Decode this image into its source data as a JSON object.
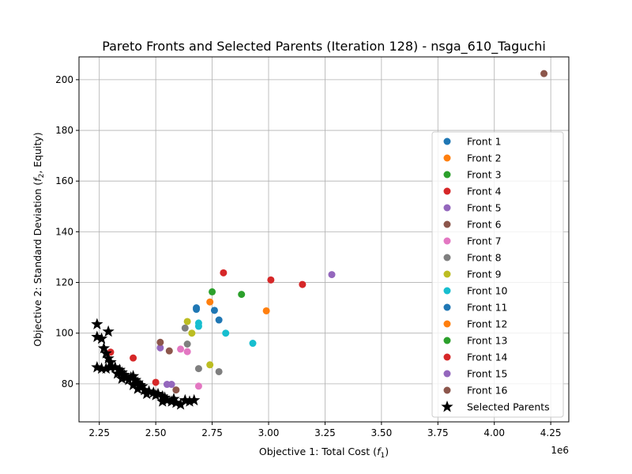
{
  "chart_data": {
    "type": "scatter",
    "title": "Pareto Fronts and Selected Parents (Iteration 128) - nsga_610_Taguchi",
    "xlabel": "Objective 1: Total Cost (f1)",
    "ylabel": "Objective 2: Standard Deviation (f2, Equity)",
    "x_multiplier": "1e6",
    "xlim": [
      2.16,
      4.33
    ],
    "ylim": [
      65,
      209
    ],
    "x_ticks": [
      2.25,
      2.5,
      2.75,
      3.0,
      3.25,
      3.5,
      3.75,
      4.0,
      4.25
    ],
    "x_tick_labels": [
      "2.25",
      "2.50",
      "2.75",
      "3.00",
      "3.25",
      "3.50",
      "3.75",
      "4.00",
      "4.25"
    ],
    "y_ticks": [
      80,
      100,
      120,
      140,
      160,
      180,
      200
    ],
    "y_tick_labels": [
      "80",
      "100",
      "120",
      "140",
      "160",
      "180",
      "200"
    ],
    "grid": true,
    "legend_position": "center-right",
    "series": [
      {
        "name": "Front 1",
        "color": "#1f77b4",
        "points": [
          [
            2.68,
            110.0
          ],
          [
            2.76,
            109.0
          ],
          [
            2.78,
            105.2
          ]
        ]
      },
      {
        "name": "Front 2",
        "color": "#ff7f0e",
        "points": [
          [
            2.74,
            112.3
          ],
          [
            2.99,
            108.8
          ]
        ]
      },
      {
        "name": "Front 3",
        "color": "#2ca02c",
        "points": [
          [
            2.75,
            116.3
          ],
          [
            2.88,
            115.3
          ]
        ]
      },
      {
        "name": "Front 4",
        "color": "#d62728",
        "points": [
          [
            2.8,
            123.8
          ],
          [
            3.01,
            121.0
          ],
          [
            3.15,
            119.2
          ]
        ]
      },
      {
        "name": "Front 5",
        "color": "#9467bd",
        "points": [
          [
            3.28,
            123.1
          ]
        ]
      },
      {
        "name": "Front 6",
        "color": "#8c564b",
        "points": [
          [
            4.22,
            202.4
          ]
        ]
      },
      {
        "name": "Front 7",
        "color": "#e377c2",
        "points": [
          [
            2.61,
            93.7
          ],
          [
            2.64,
            92.7
          ],
          [
            2.69,
            79.1
          ]
        ]
      },
      {
        "name": "Front 8",
        "color": "#7f7f7f",
        "points": [
          [
            2.63,
            102.0
          ],
          [
            2.64,
            95.7
          ],
          [
            2.69,
            86.0
          ],
          [
            2.78,
            84.8
          ]
        ]
      },
      {
        "name": "Front 9",
        "color": "#bcbd22",
        "points": [
          [
            2.64,
            104.6
          ],
          [
            2.66,
            100.0
          ],
          [
            2.74,
            87.5
          ]
        ]
      },
      {
        "name": "Front 10",
        "color": "#17becf",
        "points": [
          [
            2.69,
            104.0
          ],
          [
            2.69,
            102.7
          ],
          [
            2.81,
            100.0
          ],
          [
            2.93,
            96.0
          ]
        ]
      },
      {
        "name": "Front 11",
        "color": "#1f77b4",
        "points": [
          [
            2.68,
            109.4
          ]
        ]
      },
      {
        "name": "Front 12",
        "color": "#ff7f0e",
        "points": []
      },
      {
        "name": "Front 13",
        "color": "#2ca02c",
        "points": []
      },
      {
        "name": "Front 14",
        "color": "#d62728",
        "points": [
          [
            2.3,
            92.5
          ],
          [
            2.4,
            90.2
          ],
          [
            2.5,
            80.6
          ]
        ]
      },
      {
        "name": "Front 15",
        "color": "#9467bd",
        "points": [
          [
            2.52,
            94.2
          ],
          [
            2.55,
            79.8
          ],
          [
            2.57,
            79.8
          ]
        ]
      },
      {
        "name": "Front 16",
        "color": "#8c564b",
        "points": [
          [
            2.52,
            96.4
          ],
          [
            2.56,
            93.0
          ],
          [
            2.59,
            77.6
          ]
        ]
      }
    ],
    "selected_parents": {
      "name": "Selected Parents",
      "color": "#000000",
      "points": [
        [
          2.24,
          103.5
        ],
        [
          2.24,
          98.5
        ],
        [
          2.26,
          97.8
        ],
        [
          2.29,
          100.6
        ],
        [
          2.27,
          94.0
        ],
        [
          2.28,
          92.0
        ],
        [
          2.29,
          90.0
        ],
        [
          2.3,
          88.5
        ],
        [
          2.24,
          86.5
        ],
        [
          2.26,
          86.0
        ],
        [
          2.28,
          86.0
        ],
        [
          2.3,
          86.5
        ],
        [
          2.32,
          86.5
        ],
        [
          2.34,
          85.5
        ],
        [
          2.35,
          84.5
        ],
        [
          2.36,
          83.5
        ],
        [
          2.37,
          82.5
        ],
        [
          2.35,
          82.0
        ],
        [
          2.38,
          81.5
        ],
        [
          2.39,
          82.5
        ],
        [
          2.4,
          83.0
        ],
        [
          2.41,
          81.5
        ],
        [
          2.42,
          80.5
        ],
        [
          2.43,
          79.5
        ],
        [
          2.44,
          79.0
        ],
        [
          2.4,
          79.5
        ],
        [
          2.42,
          78.0
        ],
        [
          2.45,
          77.5
        ],
        [
          2.47,
          77.0
        ],
        [
          2.49,
          76.5
        ],
        [
          2.51,
          76.0
        ],
        [
          2.53,
          75.0
        ],
        [
          2.5,
          75.5
        ],
        [
          2.54,
          74.5
        ],
        [
          2.55,
          73.5
        ],
        [
          2.53,
          73.0
        ],
        [
          2.57,
          73.0
        ],
        [
          2.59,
          72.5
        ],
        [
          2.61,
          71.8
        ],
        [
          2.63,
          73.5
        ],
        [
          2.65,
          73.0
        ],
        [
          2.67,
          73.5
        ],
        [
          2.58,
          74.0
        ],
        [
          2.46,
          76.0
        ],
        [
          2.33,
          84.0
        ]
      ]
    }
  }
}
